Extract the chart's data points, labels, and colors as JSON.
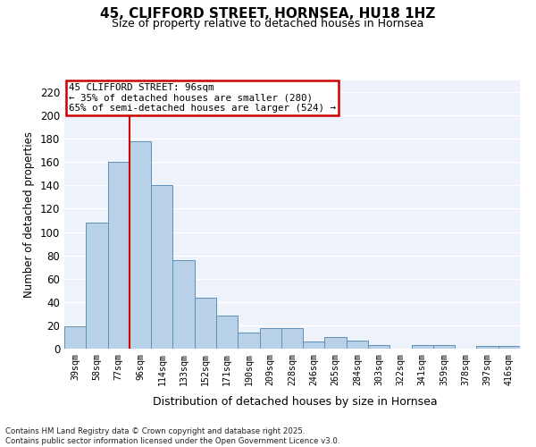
{
  "title": "45, CLIFFORD STREET, HORNSEA, HU18 1HZ",
  "subtitle": "Size of property relative to detached houses in Hornsea",
  "xlabel": "Distribution of detached houses by size in Hornsea",
  "ylabel": "Number of detached properties",
  "bar_color": "#b8d0e8",
  "bar_edge_color": "#6090b8",
  "background_color": "#eef2fa",
  "grid_color": "#ffffff",
  "categories": [
    "39sqm",
    "58sqm",
    "77sqm",
    "96sqm",
    "114sqm",
    "133sqm",
    "152sqm",
    "171sqm",
    "190sqm",
    "209sqm",
    "228sqm",
    "246sqm",
    "265sqm",
    "284sqm",
    "303sqm",
    "322sqm",
    "341sqm",
    "359sqm",
    "378sqm",
    "397sqm",
    "416sqm"
  ],
  "values": [
    19,
    108,
    160,
    178,
    140,
    76,
    44,
    28,
    14,
    18,
    18,
    6,
    10,
    7,
    3,
    0,
    3,
    3,
    0,
    2,
    2
  ],
  "ylim": [
    0,
    230
  ],
  "yticks": [
    0,
    20,
    40,
    60,
    80,
    100,
    120,
    140,
    160,
    180,
    200,
    220
  ],
  "vline_x": 2.5,
  "vline_color": "#cc0000",
  "annotation_title": "45 CLIFFORD STREET: 96sqm",
  "annotation_line1": "← 35% of detached houses are smaller (280)",
  "annotation_line2": "65% of semi-detached houses are larger (524) →",
  "annotation_box_color": "#cc0000",
  "footer_line1": "Contains HM Land Registry data © Crown copyright and database right 2025.",
  "footer_line2": "Contains public sector information licensed under the Open Government Licence v3.0."
}
